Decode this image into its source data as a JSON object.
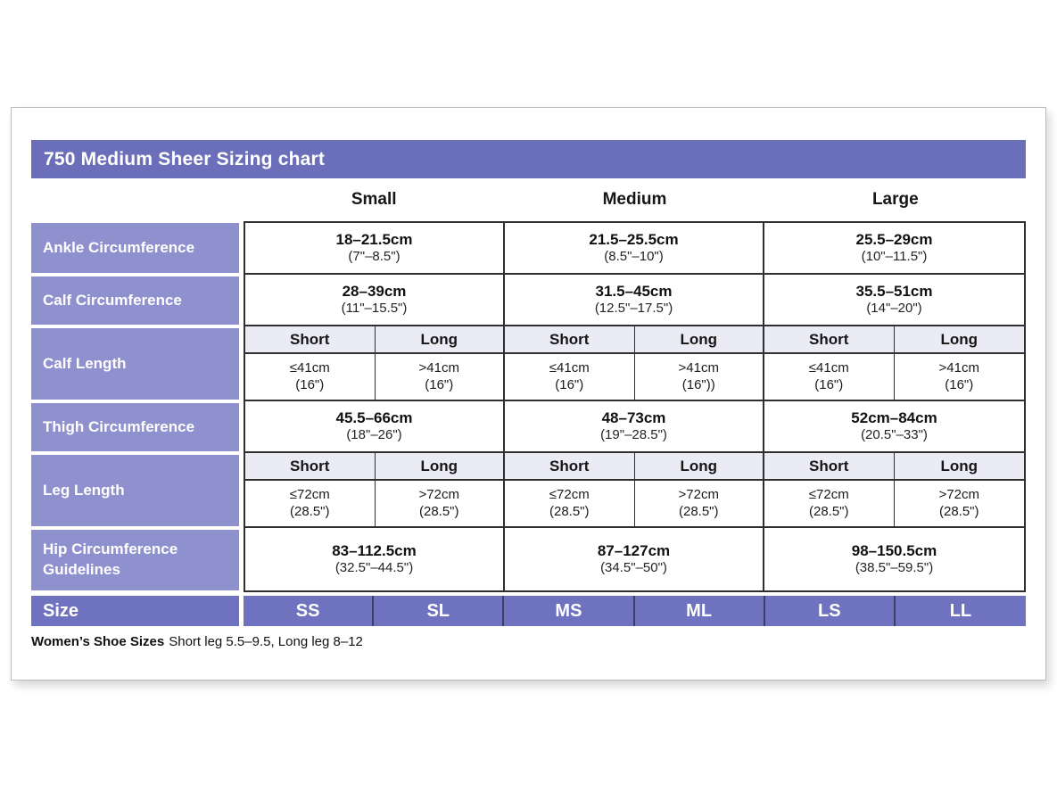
{
  "page": {
    "title": "750 Medium Sheer Sizing chart",
    "footer": {
      "bold": "Women’s Shoe Sizes",
      "text": "Short leg 5.5–9.5, Long leg 8–12"
    }
  },
  "colors": {
    "title_bar_purple": "#6b6fba",
    "row_label_purple": "#8f91ce",
    "size_row_purple": "#6e72bf",
    "subheader_lavender": "#ebebf5",
    "table_border": "#2f2f2f",
    "card_border": "#bcbcbc"
  },
  "table": {
    "size_groups": [
      "Small",
      "Medium",
      "Large"
    ],
    "rows": [
      {
        "label": "Ankle Circumference",
        "type": "single",
        "cells": [
          {
            "cm": "18–21.5cm",
            "in": "(7\"–8.5\")"
          },
          {
            "cm": "21.5–25.5cm",
            "in": "(8.5\"–10\")"
          },
          {
            "cm": "25.5–29cm",
            "in": "(10\"–11.5\")"
          }
        ]
      },
      {
        "label": "Calf Circumference",
        "type": "single",
        "cells": [
          {
            "cm": "28–39cm",
            "in": "(11\"–15.5\")"
          },
          {
            "cm": "31.5–45cm",
            "in": "(12.5\"–17.5\")"
          },
          {
            "cm": "35.5–51cm",
            "in": "(14\"–20\")"
          }
        ]
      },
      {
        "label": "Calf Length",
        "type": "split",
        "subheaders": [
          "Short",
          "Long",
          "Short",
          "Long",
          "Short",
          "Long"
        ],
        "cells": [
          {
            "cm": "≤41cm",
            "in": "(16\")"
          },
          {
            "cm": ">41cm",
            "in": "(16\")"
          },
          {
            "cm": "≤41cm",
            "in": "(16\")"
          },
          {
            "cm": ">41cm",
            "in": "(16\"))"
          },
          {
            "cm": "≤41cm",
            "in": "(16\")"
          },
          {
            "cm": ">41cm",
            "in": "(16\")"
          }
        ]
      },
      {
        "label": "Thigh Circumference",
        "type": "single",
        "cells": [
          {
            "cm": "45.5–66cm",
            "in": "(18\"–26\")"
          },
          {
            "cm": "48–73cm",
            "in": "(19\"–28.5\")"
          },
          {
            "cm": "52cm–84cm",
            "in": "(20.5\"–33\")"
          }
        ]
      },
      {
        "label": "Leg Length",
        "type": "split",
        "subheaders": [
          "Short",
          "Long",
          "Short",
          "Long",
          "Short",
          "Long"
        ],
        "cells": [
          {
            "cm": "≤72cm",
            "in": "(28.5\")"
          },
          {
            "cm": ">72cm",
            "in": "(28.5\")"
          },
          {
            "cm": "≤72cm",
            "in": "(28.5\")"
          },
          {
            "cm": ">72cm",
            "in": "(28.5\")"
          },
          {
            "cm": "≤72cm",
            "in": "(28.5\")"
          },
          {
            "cm": ">72cm",
            "in": "(28.5\")"
          }
        ]
      },
      {
        "label": "Hip Circumference Guidelines",
        "type": "single",
        "cells": [
          {
            "cm": "83–112.5cm",
            "in": "(32.5\"–44.5\")"
          },
          {
            "cm": "87–127cm",
            "in": "(34.5\"–50\")"
          },
          {
            "cm": "98–150.5cm",
            "in": "(38.5\"–59.5\")"
          }
        ]
      }
    ],
    "size_row": {
      "label": "Size",
      "cells": [
        "SS",
        "SL",
        "MS",
        "ML",
        "LS",
        "LL"
      ]
    }
  }
}
